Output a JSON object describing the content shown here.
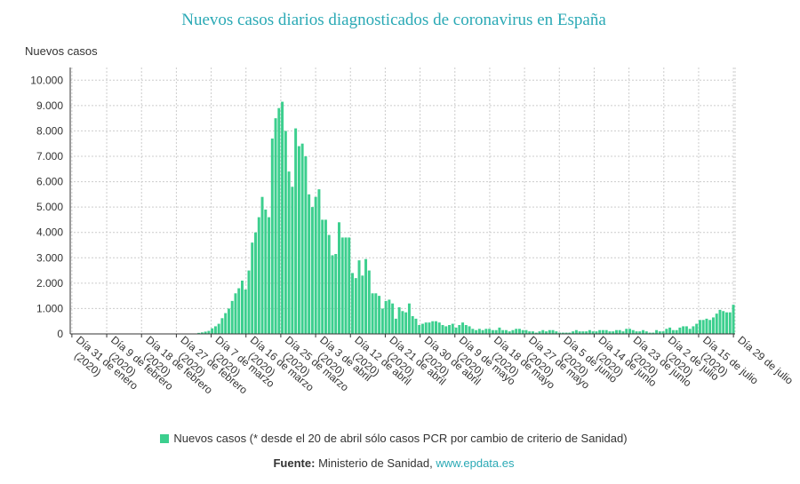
{
  "title": "Nuevos casos diarios diagnosticados de coronavirus en España",
  "colors": {
    "title": "#2aa9b5",
    "bar": "#3ccf8e",
    "grid": "#cccccc",
    "axis": "#333333",
    "link": "#2aa9b5"
  },
  "legend": {
    "text": "Nuevos casos (* desde el 20 de abril sólo casos PCR por cambio de criterio de Sanidad)"
  },
  "source": {
    "label": "Fuente:",
    "text": "Ministerio de Sanidad,",
    "link": "www.epdata.es"
  },
  "chart_data": {
    "type": "bar",
    "ylabel": "Nuevos casos",
    "ylim": [
      0,
      10500
    ],
    "yticks": [
      "0",
      "1.000",
      "2.000",
      "3.000",
      "4.000",
      "5.000",
      "6.000",
      "7.000",
      "8.000",
      "9.000",
      "10.000"
    ],
    "grid": true,
    "legend_position": "bottom",
    "xtick_labels": [
      [
        "Día 31 de enero",
        "(2020)"
      ],
      [
        "Día 9 de febrero",
        "(2020)"
      ],
      [
        "Día 18 de febrero",
        "(2020)"
      ],
      [
        "Día 27 de febrero",
        "(2020)"
      ],
      [
        "Día 7 de marzo",
        "(2020)"
      ],
      [
        "Día 16 de marzo",
        "(2020)"
      ],
      [
        "Día 25 de marzo",
        "(2020)"
      ],
      [
        "Día 3 de abril",
        "(2020)"
      ],
      [
        "Día 12 de abril",
        "(2020)"
      ],
      [
        "Día 21 de abril",
        "(2020)"
      ],
      [
        "Día 30 de abril",
        "(2020)"
      ],
      [
        "Día 9 de mayo",
        "(2020)"
      ],
      [
        "Día 18 de mayo",
        "(2020)"
      ],
      [
        "Día 27 de mayo",
        "(2020)"
      ],
      [
        "Día 5 de junio",
        "(2020)"
      ],
      [
        "Día 14 de junio",
        "(2020)"
      ],
      [
        "Día 23 de junio",
        "(2020)"
      ],
      [
        "Día 2 de julio",
        "(2020)"
      ],
      [
        "Día 15 de julio",
        "(2020)"
      ],
      [
        "Día 29 de julio",
        ""
      ]
    ],
    "series": [
      {
        "name": "Nuevos casos",
        "values": [
          0,
          0,
          0,
          0,
          0,
          0,
          0,
          0,
          0,
          0,
          0,
          0,
          0,
          0,
          0,
          0,
          0,
          0,
          0,
          0,
          0,
          0,
          0,
          0,
          0,
          0,
          0,
          0,
          0,
          0,
          0,
          0,
          0,
          0,
          0,
          0,
          0,
          0,
          40,
          60,
          90,
          120,
          220,
          300,
          400,
          620,
          820,
          1000,
          1300,
          1600,
          1800,
          2100,
          1750,
          2500,
          3600,
          4000,
          4600,
          5400,
          4900,
          4600,
          7700,
          8500,
          8900,
          9150,
          8000,
          6400,
          5800,
          8100,
          7400,
          7500,
          7000,
          5500,
          5000,
          5400,
          5700,
          4500,
          4500,
          3900,
          3100,
          3150,
          4400,
          3800,
          3800,
          3800,
          2400,
          2200,
          2900,
          2300,
          2950,
          2500,
          1600,
          1600,
          1500,
          1000,
          1300,
          1350,
          1200,
          600,
          1050,
          900,
          850,
          1200,
          700,
          600,
          350,
          400,
          450,
          450,
          500,
          500,
          450,
          350,
          300,
          350,
          400,
          250,
          350,
          450,
          350,
          300,
          200,
          150,
          200,
          150,
          200,
          200,
          150,
          150,
          250,
          150,
          150,
          100,
          150,
          200,
          200,
          150,
          150,
          100,
          100,
          50,
          100,
          150,
          100,
          150,
          150,
          100,
          50,
          50,
          50,
          50,
          100,
          150,
          100,
          100,
          100,
          150,
          100,
          100,
          150,
          150,
          150,
          100,
          100,
          150,
          150,
          100,
          200,
          200,
          150,
          100,
          100,
          150,
          100,
          50,
          50,
          150,
          100,
          100,
          200,
          250,
          150,
          150,
          250,
          300,
          300,
          200,
          300,
          400,
          550,
          550,
          600,
          550,
          650,
          800,
          950,
          900,
          850,
          850,
          1150
        ]
      }
    ]
  }
}
